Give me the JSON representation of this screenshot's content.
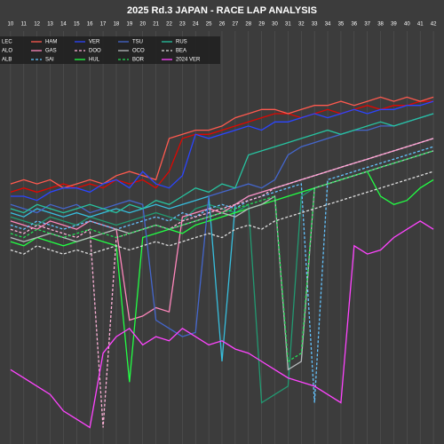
{
  "chart_data": {
    "type": "line",
    "title": "2025 Rd.3 JAPAN - RACE LAP ANALYSIS",
    "x": [
      10,
      11,
      12,
      13,
      14,
      15,
      16,
      17,
      18,
      19,
      20,
      21,
      22,
      23,
      24,
      25,
      26,
      27,
      28,
      29,
      30,
      31,
      32,
      33,
      34,
      35,
      36,
      37,
      38,
      39,
      40,
      41,
      42
    ],
    "xlim": [
      9.2,
      42.8
    ],
    "xticks": [
      10,
      11,
      12,
      13,
      14,
      15,
      16,
      17,
      18,
      19,
      20,
      21,
      22,
      23,
      24,
      25,
      26,
      27,
      28,
      29,
      30,
      31,
      32,
      33,
      34,
      35,
      36,
      37,
      38,
      39,
      40,
      41,
      42
    ],
    "ylim": [
      0,
      100
    ],
    "grid": true,
    "series": [
      {
        "name": "LEC",
        "color": "#e10600",
        "dash": false,
        "values": [
          61,
          62,
          61,
          62,
          63,
          62,
          63,
          62,
          64,
          63,
          64,
          62,
          66,
          74,
          75,
          75,
          76,
          77,
          78,
          79,
          80,
          80,
          79,
          80,
          81,
          80,
          81,
          82,
          81,
          82,
          82,
          83,
          83
        ]
      },
      {
        "name": "ALO",
        "color": "#229971",
        "dash": false,
        "values": [
          55,
          54,
          53,
          55,
          54,
          53,
          55,
          54,
          53,
          54,
          55,
          56,
          55,
          54,
          57,
          58,
          57,
          56,
          58,
          10,
          12,
          14,
          60,
          62,
          63,
          64,
          65,
          66,
          67,
          68,
          69,
          70,
          71
        ]
      },
      {
        "name": "ALB",
        "color": "#37bedd",
        "dash": false,
        "values": [
          56,
          55,
          57,
          56,
          55,
          56,
          55,
          56,
          57,
          56,
          57,
          58,
          57,
          58,
          59,
          60,
          20,
          58,
          60,
          61,
          62,
          63,
          64,
          65,
          66,
          67,
          68,
          69,
          70,
          71,
          72,
          73,
          74
        ]
      },
      {
        "name": "HAM",
        "color": "#ff5a4f",
        "dash": false,
        "values": [
          63,
          64,
          63,
          64,
          62,
          63,
          64,
          63,
          65,
          66,
          65,
          64,
          74,
          75,
          76,
          76,
          77,
          79,
          80,
          81,
          81,
          80,
          81,
          82,
          82,
          83,
          82,
          83,
          84,
          83,
          84,
          83,
          84
        ]
      },
      {
        "name": "GAS",
        "color": "#ff87bc",
        "dash": false,
        "values": [
          54,
          53,
          52,
          54,
          53,
          52,
          54,
          53,
          52,
          30,
          31,
          33,
          32,
          55,
          56,
          57,
          56,
          58,
          60,
          61,
          62,
          63,
          64,
          65,
          66,
          67,
          68,
          69,
          70,
          71,
          72,
          73,
          74
        ]
      },
      {
        "name": "SAI",
        "color": "#64c4ff",
        "dash": true,
        "values": [
          53,
          52,
          54,
          53,
          52,
          53,
          54,
          53,
          52,
          53,
          54,
          55,
          54,
          56,
          55,
          57,
          58,
          57,
          59,
          60,
          61,
          62,
          63,
          10,
          64,
          65,
          66,
          67,
          68,
          69,
          70,
          71,
          72
        ]
      },
      {
        "name": "VER",
        "color": "#2b45ff",
        "dash": false,
        "values": [
          60,
          60,
          59,
          61,
          62,
          62,
          61,
          63,
          64,
          62,
          66,
          63,
          62,
          65,
          75,
          74,
          75,
          76,
          77,
          76,
          78,
          78,
          79,
          80,
          79,
          80,
          81,
          80,
          81,
          81,
          82,
          82,
          83
        ]
      },
      {
        "name": "DOO",
        "color": "#ffb3d9",
        "dash": true,
        "values": [
          52,
          51,
          53,
          52,
          51,
          50,
          52,
          4,
          50,
          51,
          52,
          53,
          52,
          54,
          55,
          56,
          57,
          58,
          59,
          60,
          62,
          63,
          64,
          65,
          66,
          67,
          68,
          69,
          70,
          71,
          72,
          73,
          74
        ]
      },
      {
        "name": "HUL",
        "color": "#22ff44",
        "dash": false,
        "values": [
          49,
          48,
          50,
          49,
          48,
          49,
          50,
          49,
          48,
          15,
          50,
          51,
          52,
          51,
          53,
          54,
          55,
          56,
          57,
          58,
          59,
          60,
          61,
          62,
          63,
          64,
          65,
          66,
          60,
          58,
          59,
          62,
          64
        ]
      },
      {
        "name": "TSU",
        "color": "#4466cc",
        "dash": false,
        "values": [
          58,
          57,
          56,
          58,
          57,
          58,
          56,
          57,
          58,
          59,
          58,
          30,
          28,
          26,
          27,
          60,
          61,
          62,
          63,
          62,
          64,
          70,
          72,
          73,
          74,
          75,
          76,
          76,
          77,
          77,
          78,
          79,
          80
        ]
      },
      {
        "name": "OCO",
        "color": "#b6babd",
        "dash": false,
        "values": [
          50,
          49,
          50,
          51,
          50,
          49,
          50,
          51,
          52,
          51,
          52,
          53,
          52,
          53,
          54,
          55,
          56,
          55,
          57,
          58,
          60,
          18,
          20,
          62,
          63,
          64,
          65,
          66,
          67,
          68,
          69,
          70,
          71
        ]
      },
      {
        "name": "BOR",
        "color": "#22dd55",
        "dash": true,
        "values": [
          51,
          50,
          52,
          51,
          50,
          51,
          52,
          51,
          50,
          51,
          52,
          53,
          52,
          53,
          54,
          55,
          56,
          57,
          58,
          59,
          60,
          20,
          22,
          62,
          63,
          64,
          65,
          66,
          67,
          68,
          69,
          70,
          71
        ]
      },
      {
        "name": "RUS",
        "color": "#27c3a0",
        "dash": false,
        "values": [
          57,
          56,
          58,
          57,
          56,
          57,
          58,
          57,
          56,
          58,
          57,
          59,
          58,
          60,
          62,
          61,
          63,
          62,
          70,
          71,
          72,
          73,
          74,
          75,
          76,
          75,
          76,
          77,
          78,
          77,
          78,
          79,
          80
        ]
      },
      {
        "name": "BEA",
        "color": "#dddddd",
        "dash": true,
        "values": [
          47,
          46,
          48,
          47,
          46,
          47,
          46,
          47,
          48,
          47,
          48,
          49,
          48,
          49,
          50,
          51,
          50,
          52,
          53,
          52,
          54,
          55,
          56,
          57,
          58,
          59,
          60,
          61,
          62,
          63,
          64,
          65,
          66
        ]
      },
      {
        "name": "2024 VER",
        "color": "#ff44ff",
        "dash": false,
        "values": [
          18,
          16,
          14,
          12,
          8,
          6,
          4,
          22,
          26,
          28,
          24,
          26,
          25,
          28,
          26,
          24,
          25,
          23,
          22,
          20,
          18,
          16,
          15,
          14,
          12,
          10,
          48,
          46,
          47,
          50,
          52,
          54,
          52
        ]
      }
    ]
  }
}
